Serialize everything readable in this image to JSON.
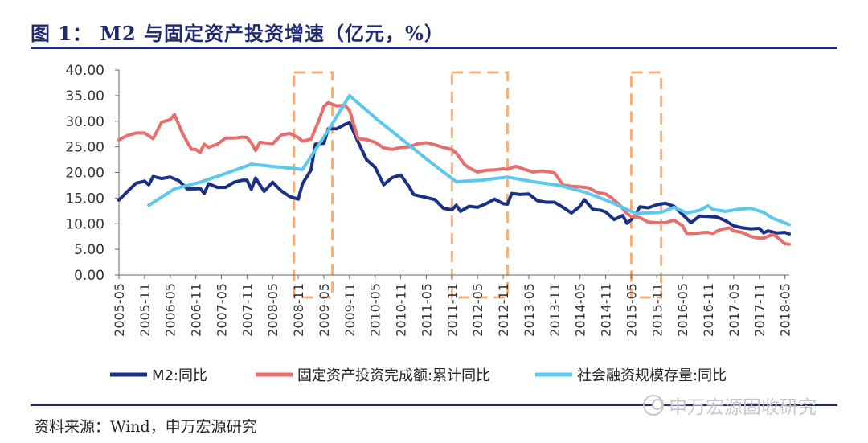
{
  "header": {
    "title": "图 1： M2 与固定资产投资增速（亿元，%）"
  },
  "footer": {
    "source": "资料来源：Wind，申万宏源研究",
    "watermark": "申万宏源固收研究"
  },
  "colors": {
    "m2": "#1a2f86",
    "fai": "#e86d6d",
    "tsf": "#5bc8f0",
    "highlight": "#f5b07a",
    "rule": "#1f2a70"
  },
  "chart_data": {
    "type": "line",
    "xlabel": "",
    "ylabel": "",
    "ylim": [
      0,
      40
    ],
    "y_ticks": [
      "0.00",
      "5.00",
      "10.00",
      "15.00",
      "20.00",
      "25.00",
      "30.00",
      "35.00",
      "40.00"
    ],
    "x_ticks": [
      "2005-05",
      "2005-11",
      "2006-05",
      "2006-11",
      "2007-05",
      "2007-11",
      "2008-05",
      "2008-11",
      "2009-05",
      "2009-11",
      "2010-05",
      "2010-11",
      "2011-05",
      "2011-11",
      "2012-05",
      "2012-11",
      "2013-05",
      "2013-11",
      "2014-05",
      "2014-11",
      "2015-05",
      "2015-11",
      "2016-05",
      "2016-11",
      "2017-05",
      "2017-11",
      "2018-05"
    ],
    "legend_position": "bottom",
    "grid": false,
    "highlight_periods": [
      [
        "2008-10",
        "2009-07"
      ],
      [
        "2011-11",
        "2012-12"
      ],
      [
        "2015-05",
        "2015-12"
      ]
    ],
    "series": [
      {
        "name": "M2:同比",
        "color_key": "m2",
        "points": [
          [
            "2005-05",
            14.6
          ],
          [
            "2005-07",
            16.3
          ],
          [
            "2005-09",
            17.9
          ],
          [
            "2005-11",
            18.3
          ],
          [
            "2005-12",
            17.6
          ],
          [
            "2006-01",
            19.2
          ],
          [
            "2006-03",
            18.8
          ],
          [
            "2006-05",
            19.1
          ],
          [
            "2006-07",
            18.4
          ],
          [
            "2006-09",
            16.8
          ],
          [
            "2006-11",
            16.8
          ],
          [
            "2006-12",
            16.9
          ],
          [
            "2007-01",
            15.9
          ],
          [
            "2007-02",
            17.8
          ],
          [
            "2007-04",
            17.1
          ],
          [
            "2007-06",
            17.1
          ],
          [
            "2007-08",
            18.1
          ],
          [
            "2007-10",
            18.5
          ],
          [
            "2007-11",
            18.5
          ],
          [
            "2007-12",
            16.7
          ],
          [
            "2008-01",
            18.9
          ],
          [
            "2008-03",
            16.3
          ],
          [
            "2008-05",
            18.1
          ],
          [
            "2008-07",
            16.4
          ],
          [
            "2008-09",
            15.3
          ],
          [
            "2008-11",
            14.8
          ],
          [
            "2008-12",
            17.8
          ],
          [
            "2009-02",
            20.5
          ],
          [
            "2009-03",
            25.5
          ],
          [
            "2009-05",
            25.7
          ],
          [
            "2009-06",
            28.5
          ],
          [
            "2009-08",
            28.5
          ],
          [
            "2009-10",
            29.4
          ],
          [
            "2009-11",
            29.7
          ],
          [
            "2010-01",
            26.0
          ],
          [
            "2010-03",
            22.5
          ],
          [
            "2010-05",
            21.0
          ],
          [
            "2010-07",
            17.6
          ],
          [
            "2010-09",
            19.0
          ],
          [
            "2010-11",
            19.5
          ],
          [
            "2011-01",
            17.2
          ],
          [
            "2011-02",
            15.7
          ],
          [
            "2011-04",
            15.3
          ],
          [
            "2011-05",
            15.1
          ],
          [
            "2011-07",
            14.7
          ],
          [
            "2011-09",
            13.0
          ],
          [
            "2011-11",
            12.7
          ],
          [
            "2011-12",
            13.6
          ],
          [
            "2012-01",
            12.4
          ],
          [
            "2012-03",
            13.4
          ],
          [
            "2012-05",
            13.2
          ],
          [
            "2012-07",
            13.9
          ],
          [
            "2012-09",
            14.8
          ],
          [
            "2012-11",
            13.9
          ],
          [
            "2012-12",
            13.8
          ],
          [
            "2013-01",
            15.9
          ],
          [
            "2013-03",
            15.7
          ],
          [
            "2013-05",
            15.8
          ],
          [
            "2013-07",
            14.5
          ],
          [
            "2013-09",
            14.2
          ],
          [
            "2013-11",
            14.2
          ],
          [
            "2014-01",
            13.2
          ],
          [
            "2014-03",
            12.1
          ],
          [
            "2014-05",
            13.4
          ],
          [
            "2014-06",
            14.7
          ],
          [
            "2014-08",
            12.8
          ],
          [
            "2014-10",
            12.6
          ],
          [
            "2014-11",
            12.3
          ],
          [
            "2015-01",
            10.8
          ],
          [
            "2015-03",
            11.6
          ],
          [
            "2015-04",
            10.1
          ],
          [
            "2015-05",
            10.8
          ],
          [
            "2015-06",
            11.8
          ],
          [
            "2015-07",
            13.3
          ],
          [
            "2015-09",
            13.1
          ],
          [
            "2015-11",
            13.7
          ],
          [
            "2016-01",
            14.0
          ],
          [
            "2016-03",
            13.4
          ],
          [
            "2016-05",
            11.8
          ],
          [
            "2016-07",
            10.2
          ],
          [
            "2016-09",
            11.5
          ],
          [
            "2016-11",
            11.4
          ],
          [
            "2017-01",
            11.3
          ],
          [
            "2017-03",
            10.6
          ],
          [
            "2017-05",
            9.6
          ],
          [
            "2017-07",
            9.2
          ],
          [
            "2017-09",
            9.0
          ],
          [
            "2017-11",
            9.1
          ],
          [
            "2017-12",
            8.2
          ],
          [
            "2018-01",
            8.6
          ],
          [
            "2018-03",
            8.2
          ],
          [
            "2018-05",
            8.3
          ],
          [
            "2018-06",
            8.0
          ]
        ]
      },
      {
        "name": "固定资产投资完成额:累计同比",
        "color_key": "fai",
        "points": [
          [
            "2005-05",
            26.4
          ],
          [
            "2005-07",
            27.2
          ],
          [
            "2005-09",
            27.7
          ],
          [
            "2005-11",
            27.7
          ],
          [
            "2006-01",
            26.6
          ],
          [
            "2006-03",
            29.8
          ],
          [
            "2006-05",
            30.3
          ],
          [
            "2006-06",
            31.3
          ],
          [
            "2006-08",
            27.4
          ],
          [
            "2006-10",
            24.5
          ],
          [
            "2006-11",
            24.5
          ],
          [
            "2006-12",
            23.9
          ],
          [
            "2007-01",
            25.5
          ],
          [
            "2007-02",
            24.9
          ],
          [
            "2007-04",
            25.5
          ],
          [
            "2007-06",
            26.7
          ],
          [
            "2007-08",
            26.7
          ],
          [
            "2007-10",
            26.9
          ],
          [
            "2007-11",
            26.8
          ],
          [
            "2007-12",
            25.8
          ],
          [
            "2008-01",
            24.3
          ],
          [
            "2008-02",
            25.9
          ],
          [
            "2008-04",
            25.7
          ],
          [
            "2008-05",
            25.6
          ],
          [
            "2008-07",
            27.3
          ],
          [
            "2008-09",
            27.6
          ],
          [
            "2008-11",
            26.8
          ],
          [
            "2008-12",
            26.1
          ],
          [
            "2009-02",
            26.5
          ],
          [
            "2009-04",
            30.5
          ],
          [
            "2009-05",
            32.9
          ],
          [
            "2009-06",
            33.6
          ],
          [
            "2009-08",
            33.0
          ],
          [
            "2009-10",
            33.1
          ],
          [
            "2009-11",
            32.1
          ],
          [
            "2010-01",
            26.6
          ],
          [
            "2010-03",
            26.4
          ],
          [
            "2010-05",
            25.9
          ],
          [
            "2010-07",
            24.8
          ],
          [
            "2010-09",
            24.5
          ],
          [
            "2010-11",
            24.9
          ],
          [
            "2011-01",
            25.0
          ],
          [
            "2011-03",
            25.6
          ],
          [
            "2011-05",
            25.8
          ],
          [
            "2011-07",
            25.4
          ],
          [
            "2011-09",
            24.9
          ],
          [
            "2011-11",
            24.5
          ],
          [
            "2011-12",
            23.8
          ],
          [
            "2012-02",
            21.5
          ],
          [
            "2012-03",
            20.9
          ],
          [
            "2012-05",
            20.1
          ],
          [
            "2012-07",
            20.4
          ],
          [
            "2012-09",
            20.5
          ],
          [
            "2012-11",
            20.7
          ],
          [
            "2012-12",
            20.6
          ],
          [
            "2013-02",
            21.2
          ],
          [
            "2013-04",
            20.6
          ],
          [
            "2013-06",
            20.1
          ],
          [
            "2013-08",
            20.3
          ],
          [
            "2013-10",
            20.1
          ],
          [
            "2013-11",
            19.9
          ],
          [
            "2014-01",
            17.6
          ],
          [
            "2014-03",
            17.3
          ],
          [
            "2014-05",
            17.2
          ],
          [
            "2014-07",
            17.0
          ],
          [
            "2014-09",
            16.1
          ],
          [
            "2014-11",
            15.8
          ],
          [
            "2014-12",
            15.3
          ],
          [
            "2015-02",
            13.9
          ],
          [
            "2015-04",
            12.0
          ],
          [
            "2015-05",
            11.4
          ],
          [
            "2015-07",
            11.2
          ],
          [
            "2015-09",
            10.3
          ],
          [
            "2015-11",
            10.2
          ],
          [
            "2016-01",
            10.2
          ],
          [
            "2016-03",
            10.7
          ],
          [
            "2016-05",
            9.6
          ],
          [
            "2016-06",
            8.1
          ],
          [
            "2016-08",
            8.1
          ],
          [
            "2016-10",
            8.3
          ],
          [
            "2016-11",
            8.3
          ],
          [
            "2016-12",
            8.1
          ],
          [
            "2017-02",
            8.9
          ],
          [
            "2017-04",
            9.2
          ],
          [
            "2017-05",
            8.6
          ],
          [
            "2017-07",
            8.3
          ],
          [
            "2017-09",
            7.5
          ],
          [
            "2017-11",
            7.2
          ],
          [
            "2017-12",
            7.2
          ],
          [
            "2018-02",
            7.9
          ],
          [
            "2018-03",
            7.5
          ],
          [
            "2018-05",
            6.1
          ],
          [
            "2018-06",
            6.0
          ]
        ]
      },
      {
        "name": "社会融资规模存量:同比",
        "color_key": "tsf",
        "points": [
          [
            "2005-12",
            13.6
          ],
          [
            "2006-06",
            16.8
          ],
          [
            "2006-12",
            18.1
          ],
          [
            "2007-06",
            19.8
          ],
          [
            "2007-12",
            21.6
          ],
          [
            "2008-06",
            21.1
          ],
          [
            "2008-12",
            20.6
          ],
          [
            "2009-06",
            28.2
          ],
          [
            "2009-11",
            35.0
          ],
          [
            "2010-06",
            30.0
          ],
          [
            "2010-12",
            26.0
          ],
          [
            "2011-06",
            22.0
          ],
          [
            "2011-12",
            18.2
          ],
          [
            "2012-06",
            18.5
          ],
          [
            "2012-12",
            19.1
          ],
          [
            "2013-06",
            18.2
          ],
          [
            "2013-12",
            17.5
          ],
          [
            "2014-06",
            16.2
          ],
          [
            "2014-12",
            14.3
          ],
          [
            "2015-06",
            12.0
          ],
          [
            "2015-12",
            12.2
          ],
          [
            "2016-03",
            13.2
          ],
          [
            "2016-06",
            12.1
          ],
          [
            "2016-09",
            12.6
          ],
          [
            "2016-11",
            13.5
          ],
          [
            "2016-12",
            12.8
          ],
          [
            "2017-03",
            12.4
          ],
          [
            "2017-06",
            12.8
          ],
          [
            "2017-09",
            13.0
          ],
          [
            "2017-12",
            12.2
          ],
          [
            "2018-02",
            11.1
          ],
          [
            "2018-04",
            10.5
          ],
          [
            "2018-06",
            9.8
          ]
        ]
      }
    ]
  }
}
